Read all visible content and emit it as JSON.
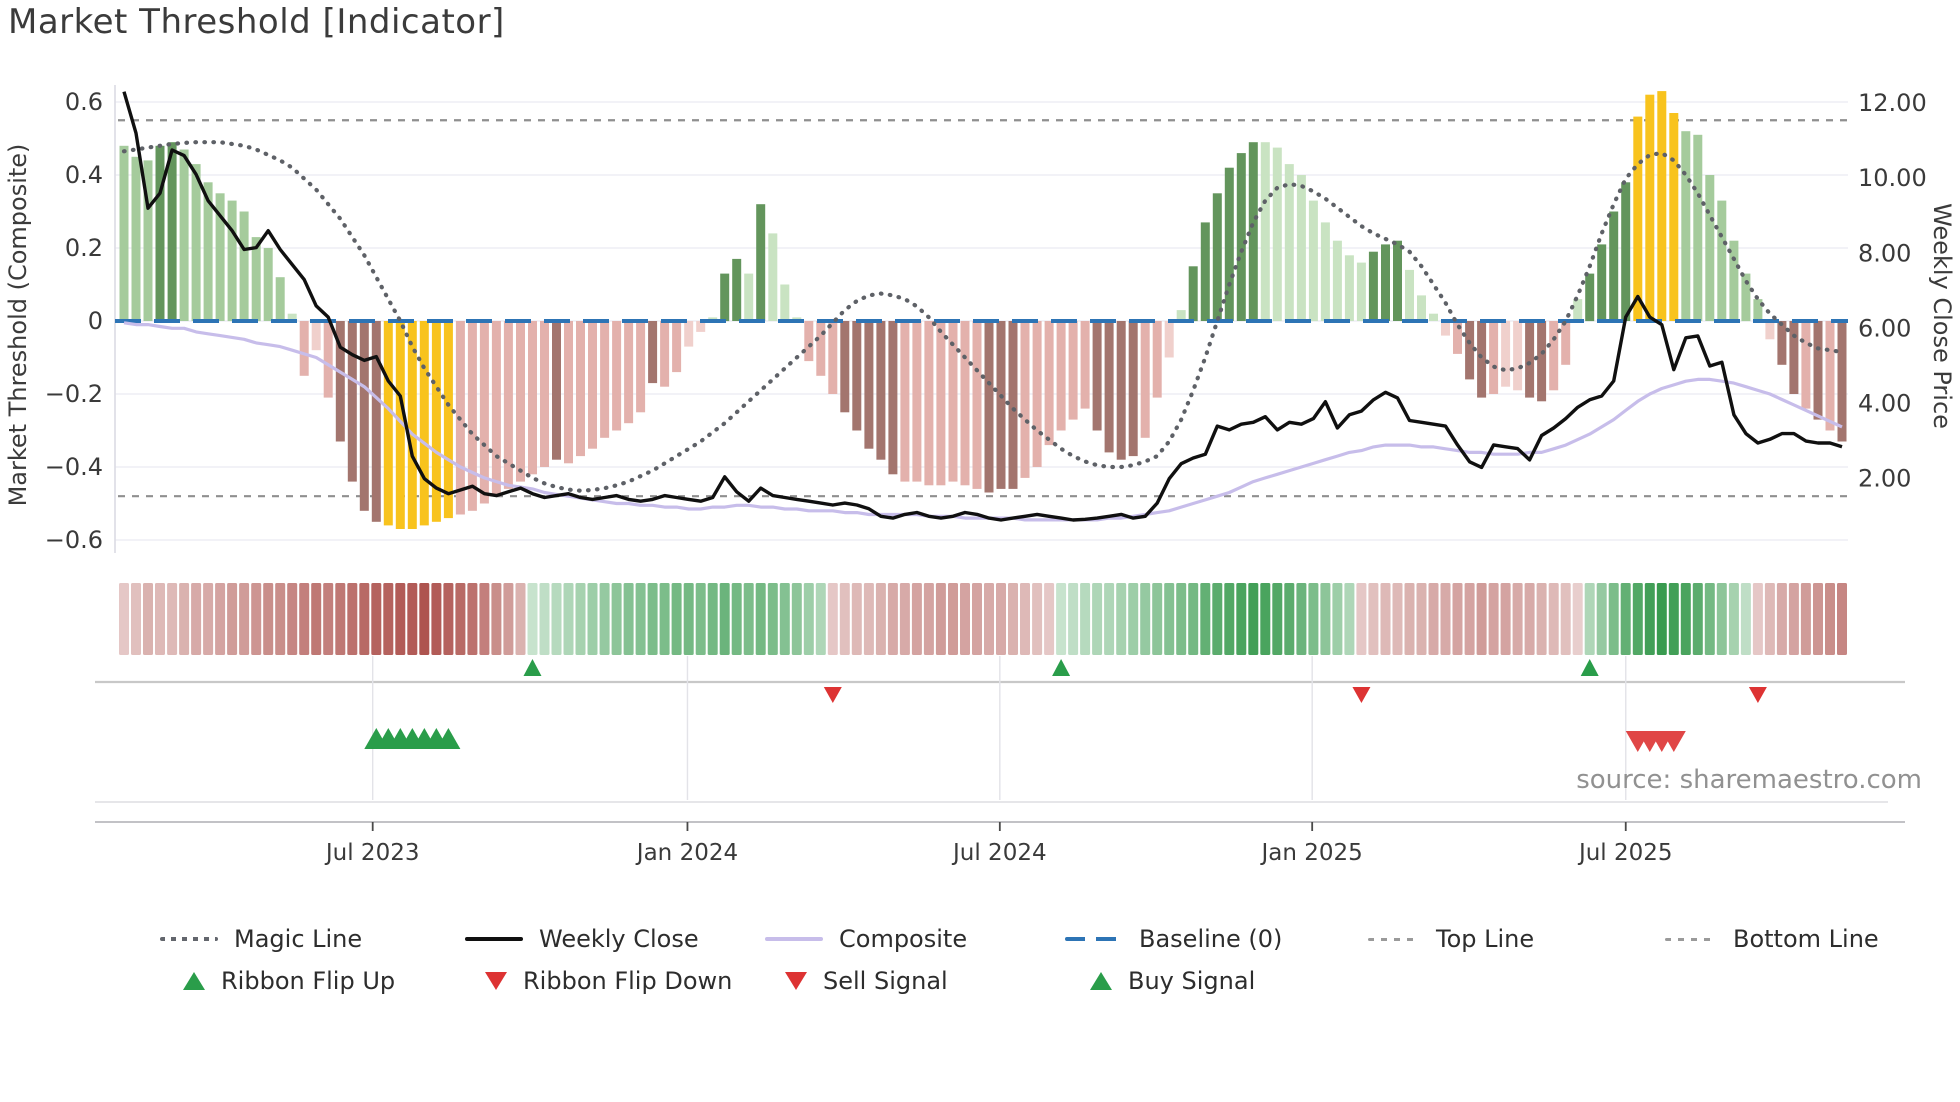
{
  "title": "Market Threshold [Indicator]",
  "source_credit": "source: sharemaestro.com",
  "axes": {
    "left": {
      "label": "Market Threshold (Composite)",
      "ticks": [
        {
          "label": "0.6",
          "value": 0.6
        },
        {
          "label": "0.4",
          "value": 0.4
        },
        {
          "label": "0.2",
          "value": 0.2
        },
        {
          "label": "0",
          "value": 0
        },
        {
          "label": "−0.2",
          "value": -0.2
        },
        {
          "label": "−0.4",
          "value": -0.4
        },
        {
          "label": "−0.6",
          "value": -0.6
        }
      ]
    },
    "right": {
      "label": "Weekly Close Price",
      "ticks": [
        {
          "label": "12.00",
          "value": 12
        },
        {
          "label": "10.00",
          "value": 10
        },
        {
          "label": "8.00",
          "value": 8
        },
        {
          "label": "6.00",
          "value": 6
        },
        {
          "label": "4.00",
          "value": 4
        },
        {
          "label": "2.00",
          "value": 2
        }
      ]
    },
    "x": {
      "ticks": [
        {
          "label": "Jul 2023",
          "week": 20.7
        },
        {
          "label": "Jan 2024",
          "week": 46.9
        },
        {
          "label": "Jul 2024",
          "week": 72.9
        },
        {
          "label": "Jan 2025",
          "week": 98.9
        },
        {
          "label": "Jul 2025",
          "week": 125.0
        }
      ]
    }
  },
  "legend": {
    "row1": [
      {
        "label": "Magic Line",
        "type": "dotted",
        "color": "#63666d"
      },
      {
        "label": "Weekly Close",
        "type": "solid",
        "color": "#101010"
      },
      {
        "label": "Composite",
        "type": "solid",
        "color": "#c7bdea"
      },
      {
        "label": "Baseline (0)",
        "type": "dash-long",
        "color": "#2d74b5"
      },
      {
        "label": "Top Line",
        "type": "dash-small",
        "color": "#9a9a9a"
      },
      {
        "label": "Bottom Line",
        "type": "dash-small",
        "color": "#9a9a9a"
      }
    ],
    "row2": [
      {
        "label": "Ribbon Flip Up",
        "type": "tri-up",
        "color": "#2a9d4a"
      },
      {
        "label": "Ribbon Flip Down",
        "type": "tri-down",
        "color": "#dd3333"
      },
      {
        "label": "Sell Signal",
        "type": "tri-down",
        "color": "#dd3333"
      },
      {
        "label": "Buy Signal",
        "type": "tri-up",
        "color": "#2a9d4a"
      }
    ]
  },
  "chart_data": {
    "type": "combo: weekly histogram + 3 lines (dual axis) + heatmap ribbon + signal markers",
    "weeks": 144,
    "ylim_left": [
      -0.6,
      0.6
    ],
    "ylim_right": [
      2,
      12
    ],
    "reference_lines": {
      "baseline": 0,
      "top_line": 0.55,
      "bottom_line": -0.48
    },
    "bars": {
      "values": [
        0.48,
        0.45,
        0.44,
        0.48,
        0.49,
        0.47,
        0.43,
        0.38,
        0.35,
        0.33,
        0.3,
        0.23,
        0.2,
        0.12,
        0.02,
        -0.15,
        -0.08,
        -0.21,
        -0.33,
        -0.44,
        -0.52,
        -0.55,
        -0.56,
        -0.57,
        -0.57,
        -0.56,
        -0.55,
        -0.54,
        -0.53,
        -0.52,
        -0.5,
        -0.48,
        -0.46,
        -0.44,
        -0.42,
        -0.4,
        -0.38,
        -0.39,
        -0.37,
        -0.35,
        -0.32,
        -0.3,
        -0.28,
        -0.25,
        -0.17,
        -0.18,
        -0.14,
        -0.07,
        -0.03,
        0.01,
        0.13,
        0.17,
        0.13,
        0.32,
        0.24,
        0.1,
        0.01,
        -0.11,
        -0.15,
        -0.2,
        -0.25,
        -0.3,
        -0.35,
        -0.38,
        -0.42,
        -0.44,
        -0.44,
        -0.45,
        -0.45,
        -0.44,
        -0.45,
        -0.46,
        -0.47,
        -0.46,
        -0.46,
        -0.43,
        -0.4,
        -0.34,
        -0.3,
        -0.27,
        -0.24,
        -0.3,
        -0.36,
        -0.38,
        -0.37,
        -0.32,
        -0.21,
        -0.1,
        0.03,
        0.15,
        0.27,
        0.35,
        0.42,
        0.46,
        0.49,
        0.49,
        0.475,
        0.43,
        0.4,
        0.33,
        0.27,
        0.22,
        0.18,
        0.16,
        0.19,
        0.21,
        0.22,
        0.14,
        0.07,
        0.02,
        -0.04,
        -0.09,
        -0.16,
        -0.21,
        -0.2,
        -0.18,
        -0.19,
        -0.21,
        -0.22,
        -0.19,
        -0.12,
        0.06,
        0.13,
        0.21,
        0.3,
        0.38,
        0.56,
        0.62,
        0.63,
        0.57,
        0.52,
        0.51,
        0.4,
        0.33,
        0.22,
        0.13,
        0.06,
        -0.05,
        -0.12,
        -0.2,
        -0.24,
        -0.27,
        -0.3,
        -0.33
      ],
      "colors": "LLLDDLLLLLLLLLPKWKRRRRYYYYYYKKKKKKKKRKKKKKKKRKKWWPDDPDPPPKKKRRRRRKKKKKKKRRRKKKKKKRRRRKKWPDDDDDDPPPPPPPPPDDDPPPWKRRKWWRRKKPDDDDYYYYLLLLLLLWRRKRKR",
      "color_map": {
        "L": "#a5cb9c",
        "D": "#63955c",
        "P": "#c9e3c2",
        "K": "#e3b1ac",
        "W": "#f0d0cc",
        "R": "#a3756e",
        "Y": "#f8c31d"
      }
    },
    "lines": {
      "weekly_close": {
        "axis": "right",
        "color": "#101010",
        "values": [
          12.3,
          11.2,
          9.2,
          9.6,
          10.75,
          10.6,
          10.1,
          9.4,
          9.0,
          8.6,
          8.1,
          8.15,
          8.6,
          8.1,
          7.7,
          7.3,
          6.6,
          6.3,
          5.5,
          5.3,
          5.15,
          5.25,
          4.6,
          4.2,
          2.6,
          2.0,
          1.75,
          1.6,
          1.7,
          1.8,
          1.6,
          1.55,
          1.65,
          1.75,
          1.6,
          1.5,
          1.55,
          1.6,
          1.5,
          1.45,
          1.5,
          1.55,
          1.45,
          1.4,
          1.45,
          1.55,
          1.5,
          1.45,
          1.4,
          1.5,
          2.05,
          1.65,
          1.4,
          1.75,
          1.55,
          1.5,
          1.45,
          1.4,
          1.35,
          1.3,
          1.35,
          1.3,
          1.2,
          1.0,
          0.95,
          1.05,
          1.1,
          1.0,
          0.95,
          1.0,
          1.1,
          1.05,
          0.95,
          0.9,
          0.95,
          1.0,
          1.05,
          1.0,
          0.95,
          0.9,
          0.92,
          0.95,
          1.0,
          1.05,
          0.95,
          1.0,
          1.35,
          2.0,
          2.4,
          2.55,
          2.65,
          3.4,
          3.3,
          3.45,
          3.5,
          3.65,
          3.3,
          3.5,
          3.45,
          3.6,
          4.05,
          3.35,
          3.7,
          3.8,
          4.1,
          4.3,
          4.15,
          3.55,
          3.5,
          3.45,
          3.4,
          2.9,
          2.45,
          2.3,
          2.9,
          2.85,
          2.8,
          2.5,
          3.15,
          3.35,
          3.6,
          3.9,
          4.1,
          4.2,
          4.6,
          6.3,
          6.85,
          6.3,
          6.1,
          4.9,
          5.75,
          5.8,
          5.0,
          5.1,
          3.7,
          3.2,
          2.95,
          3.05,
          3.2,
          3.2,
          3.0,
          2.95,
          2.95,
          2.85
        ]
      },
      "composite": {
        "axis": "left",
        "color": "#c7bdea",
        "values": [
          -0.005,
          -0.01,
          -0.01,
          -0.015,
          -0.02,
          -0.02,
          -0.03,
          -0.035,
          -0.04,
          -0.045,
          -0.05,
          -0.06,
          -0.065,
          -0.07,
          -0.08,
          -0.09,
          -0.1,
          -0.12,
          -0.14,
          -0.16,
          -0.18,
          -0.21,
          -0.24,
          -0.275,
          -0.31,
          -0.335,
          -0.36,
          -0.38,
          -0.4,
          -0.415,
          -0.43,
          -0.44,
          -0.45,
          -0.455,
          -0.46,
          -0.47,
          -0.475,
          -0.48,
          -0.485,
          -0.49,
          -0.495,
          -0.5,
          -0.5,
          -0.505,
          -0.505,
          -0.51,
          -0.51,
          -0.515,
          -0.515,
          -0.51,
          -0.51,
          -0.505,
          -0.505,
          -0.51,
          -0.51,
          -0.515,
          -0.515,
          -0.52,
          -0.52,
          -0.52,
          -0.525,
          -0.525,
          -0.53,
          -0.53,
          -0.53,
          -0.53,
          -0.53,
          -0.535,
          -0.535,
          -0.535,
          -0.54,
          -0.54,
          -0.54,
          -0.54,
          -0.54,
          -0.545,
          -0.545,
          -0.545,
          -0.545,
          -0.545,
          -0.545,
          -0.545,
          -0.54,
          -0.54,
          -0.535,
          -0.53,
          -0.525,
          -0.52,
          -0.51,
          -0.5,
          -0.49,
          -0.48,
          -0.47,
          -0.455,
          -0.44,
          -0.43,
          -0.42,
          -0.41,
          -0.4,
          -0.39,
          -0.38,
          -0.37,
          -0.36,
          -0.355,
          -0.345,
          -0.34,
          -0.34,
          -0.34,
          -0.345,
          -0.345,
          -0.35,
          -0.355,
          -0.36,
          -0.36,
          -0.365,
          -0.365,
          -0.365,
          -0.36,
          -0.36,
          -0.35,
          -0.34,
          -0.325,
          -0.31,
          -0.29,
          -0.27,
          -0.245,
          -0.22,
          -0.2,
          -0.185,
          -0.175,
          -0.165,
          -0.16,
          -0.16,
          -0.165,
          -0.17,
          -0.18,
          -0.19,
          -0.2,
          -0.215,
          -0.23,
          -0.245,
          -0.26,
          -0.275,
          -0.29
        ]
      },
      "magic_line": {
        "axis": "left",
        "color": "#5e6167",
        "values": [
          0.465,
          0.47,
          0.475,
          0.48,
          0.485,
          0.488,
          0.49,
          0.49,
          0.49,
          0.485,
          0.48,
          0.47,
          0.455,
          0.44,
          0.42,
          0.39,
          0.36,
          0.32,
          0.28,
          0.23,
          0.18,
          0.12,
          0.06,
          0.0,
          -0.07,
          -0.13,
          -0.18,
          -0.23,
          -0.27,
          -0.31,
          -0.34,
          -0.37,
          -0.39,
          -0.41,
          -0.43,
          -0.445,
          -0.455,
          -0.462,
          -0.465,
          -0.463,
          -0.458,
          -0.45,
          -0.44,
          -0.425,
          -0.41,
          -0.39,
          -0.37,
          -0.35,
          -0.33,
          -0.305,
          -0.28,
          -0.25,
          -0.22,
          -0.19,
          -0.16,
          -0.13,
          -0.1,
          -0.07,
          -0.04,
          -0.005,
          0.03,
          0.055,
          0.07,
          0.075,
          0.07,
          0.06,
          0.04,
          0.01,
          -0.03,
          -0.065,
          -0.1,
          -0.135,
          -0.17,
          -0.205,
          -0.24,
          -0.27,
          -0.3,
          -0.325,
          -0.35,
          -0.37,
          -0.385,
          -0.395,
          -0.4,
          -0.4,
          -0.395,
          -0.385,
          -0.37,
          -0.33,
          -0.27,
          -0.19,
          -0.1,
          0.0,
          0.1,
          0.19,
          0.27,
          0.33,
          0.365,
          0.375,
          0.37,
          0.355,
          0.335,
          0.31,
          0.285,
          0.26,
          0.24,
          0.225,
          0.21,
          0.19,
          0.15,
          0.1,
          0.05,
          -0.01,
          -0.06,
          -0.1,
          -0.125,
          -0.135,
          -0.13,
          -0.115,
          -0.09,
          -0.05,
          0.0,
          0.07,
          0.15,
          0.24,
          0.32,
          0.39,
          0.43,
          0.455,
          0.46,
          0.44,
          0.4,
          0.35,
          0.29,
          0.23,
          0.17,
          0.11,
          0.06,
          0.02,
          -0.01,
          -0.04,
          -0.06,
          -0.075,
          -0.08,
          -0.085
        ]
      }
    },
    "ribbon": [
      -0.2,
      -0.25,
      -0.35,
      -0.3,
      -0.3,
      -0.35,
      -0.4,
      -0.4,
      -0.45,
      -0.5,
      -0.5,
      -0.55,
      -0.6,
      -0.6,
      -0.65,
      -0.7,
      -0.75,
      -0.7,
      -0.75,
      -0.8,
      -0.85,
      -0.9,
      -0.9,
      -0.95,
      -0.95,
      -1.0,
      -0.95,
      -0.9,
      -0.85,
      -0.8,
      -0.7,
      -0.6,
      -0.5,
      -0.35,
      0.15,
      0.2,
      0.25,
      0.3,
      0.35,
      0.4,
      0.45,
      0.5,
      0.55,
      0.55,
      0.6,
      0.6,
      0.65,
      0.65,
      0.6,
      0.65,
      0.7,
      0.65,
      0.6,
      0.65,
      0.6,
      0.55,
      0.5,
      0.4,
      0.3,
      -0.2,
      -0.25,
      -0.3,
      -0.3,
      -0.35,
      -0.4,
      -0.4,
      -0.45,
      -0.45,
      -0.5,
      -0.5,
      -0.45,
      -0.45,
      -0.4,
      -0.4,
      -0.35,
      -0.3,
      -0.25,
      -0.2,
      0.15,
      0.2,
      0.25,
      0.3,
      0.3,
      0.35,
      0.4,
      0.45,
      0.5,
      0.55,
      0.6,
      0.65,
      0.75,
      0.8,
      0.85,
      0.9,
      0.95,
      0.9,
      0.85,
      0.8,
      0.7,
      0.6,
      0.5,
      0.4,
      0.3,
      -0.2,
      -0.25,
      -0.3,
      -0.3,
      -0.35,
      -0.35,
      -0.4,
      -0.4,
      -0.45,
      -0.45,
      -0.5,
      -0.45,
      -0.45,
      -0.4,
      -0.4,
      -0.35,
      -0.3,
      -0.25,
      -0.15,
      0.3,
      0.45,
      0.6,
      0.75,
      0.85,
      0.95,
      1.0,
      0.95,
      0.9,
      0.8,
      0.65,
      0.5,
      0.35,
      0.2,
      -0.2,
      -0.3,
      -0.4,
      -0.45,
      -0.5,
      -0.55,
      -0.6,
      -0.65
    ],
    "signals": {
      "ribbon_flip_up_weeks": [
        34,
        78,
        122
      ],
      "ribbon_flip_down_weeks": [
        59,
        103,
        136
      ],
      "buy_signal_weeks": [
        21,
        22,
        23,
        24,
        25,
        26,
        27
      ],
      "sell_signal_weeks": [
        126,
        127,
        128,
        129
      ],
      "up_color": "#2a9d4a",
      "down_color": "#dd3333",
      "buy_color": "#2a9d4a",
      "sell_color": "#e04646"
    },
    "style_colors": {
      "baseline": "#2d74b5",
      "top_bottom_line": "#8f8f8f",
      "grid": "#ebebf2",
      "ribbon_deep_green": "#2f9646",
      "ribbon_deep_red": "#aa4b46"
    }
  }
}
